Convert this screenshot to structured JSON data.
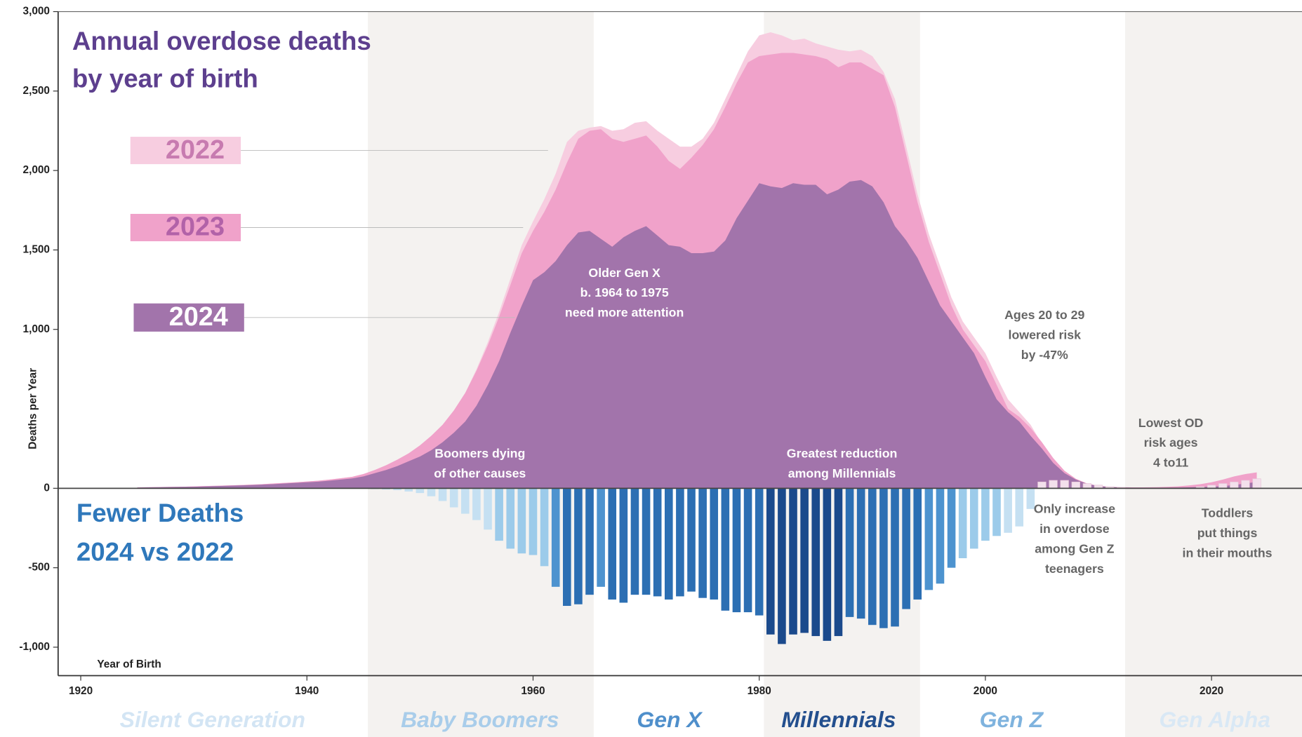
{
  "chart_data": {
    "type": "area",
    "title": [
      "Annual overdose deaths",
      "by year of birth"
    ],
    "bar_title": [
      "Fewer Deaths",
      "2024 vs 2022"
    ],
    "y_label": "Deaths per Year",
    "x_label": "Year of Birth",
    "xlim": [
      1918,
      2028
    ],
    "ylim": [
      -1200,
      3000
    ],
    "xticks": [
      1920,
      1940,
      1960,
      1980,
      2000,
      2020
    ],
    "yticks": [
      {
        "value": 3000,
        "label": "3,000"
      },
      {
        "value": 2500,
        "label": "2,500"
      },
      {
        "value": 2000,
        "label": "2,000"
      },
      {
        "value": 1500,
        "label": "1,500"
      },
      {
        "value": 1000,
        "label": "1,000"
      },
      0,
      -500,
      {
        "value": -1000,
        "label": "-1,000"
      }
    ],
    "x": [
      1925,
      1926,
      1927,
      1928,
      1929,
      1930,
      1931,
      1932,
      1933,
      1934,
      1935,
      1936,
      1937,
      1938,
      1939,
      1940,
      1941,
      1942,
      1943,
      1944,
      1945,
      1946,
      1947,
      1948,
      1949,
      1950,
      1951,
      1952,
      1953,
      1954,
      1955,
      1956,
      1957,
      1958,
      1959,
      1960,
      1961,
      1962,
      1963,
      1964,
      1965,
      1966,
      1967,
      1968,
      1969,
      1970,
      1971,
      1972,
      1973,
      1974,
      1975,
      1976,
      1977,
      1978,
      1979,
      1980,
      1981,
      1982,
      1983,
      1984,
      1985,
      1986,
      1987,
      1988,
      1989,
      1990,
      1991,
      1992,
      1993,
      1994,
      1995,
      1996,
      1997,
      1998,
      1999,
      2000,
      2001,
      2002,
      2003,
      2004,
      2005,
      2006,
      2007,
      2008,
      2009,
      2010,
      2011,
      2012,
      2013,
      2014,
      2015,
      2016,
      2017,
      2018,
      2019,
      2020,
      2021,
      2022,
      2023,
      2024
    ],
    "series": [
      {
        "name": "2022",
        "color": "#f7cde0",
        "label_color": "#c77bb0",
        "values": [
          6,
          7,
          8,
          9,
          10,
          12,
          14,
          16,
          18,
          20,
          23,
          26,
          30,
          34,
          38,
          43,
          48,
          55,
          63,
          72,
          90,
          115,
          145,
          180,
          220,
          270,
          330,
          400,
          490,
          600,
          750,
          920,
          1110,
          1320,
          1530,
          1680,
          1820,
          1980,
          2180,
          2250,
          2270,
          2280,
          2250,
          2260,
          2300,
          2310,
          2250,
          2200,
          2150,
          2150,
          2200,
          2300,
          2450,
          2600,
          2750,
          2850,
          2870,
          2850,
          2820,
          2830,
          2800,
          2780,
          2760,
          2750,
          2760,
          2720,
          2620,
          2450,
          2150,
          1850,
          1600,
          1400,
          1200,
          1050,
          950,
          850,
          700,
          560,
          480,
          400,
          280,
          170,
          90,
          40,
          15,
          6,
          3,
          2,
          2,
          2,
          3,
          4,
          6,
          9,
          14,
          20,
          28,
          40,
          50,
          55
        ]
      },
      {
        "name": "2023",
        "color": "#f0a2ca",
        "label_color": "#b262a8",
        "values": [
          6,
          7,
          8,
          9,
          10,
          12,
          14,
          16,
          18,
          20,
          23,
          26,
          30,
          34,
          38,
          43,
          48,
          55,
          63,
          72,
          90,
          115,
          145,
          180,
          220,
          270,
          330,
          400,
          490,
          600,
          740,
          900,
          1080,
          1280,
          1480,
          1620,
          1740,
          1880,
          2050,
          2200,
          2250,
          2260,
          2200,
          2180,
          2200,
          2220,
          2150,
          2060,
          2010,
          2080,
          2160,
          2260,
          2400,
          2550,
          2680,
          2720,
          2730,
          2740,
          2740,
          2730,
          2720,
          2700,
          2650,
          2680,
          2680,
          2640,
          2600,
          2400,
          2100,
          1800,
          1550,
          1350,
          1150,
          1000,
          900,
          800,
          650,
          500,
          450,
          380,
          290,
          190,
          110,
          60,
          30,
          16,
          10,
          7,
          6,
          6,
          7,
          9,
          12,
          18,
          26,
          38,
          55,
          75,
          90,
          100
        ]
      },
      {
        "name": "2024",
        "color": "#a274ab",
        "label_color": "#ffffff",
        "values": [
          5,
          6,
          7,
          8,
          9,
          10,
          12,
          14,
          16,
          18,
          20,
          23,
          26,
          30,
          34,
          38,
          42,
          48,
          55,
          62,
          75,
          95,
          115,
          140,
          170,
          200,
          240,
          290,
          350,
          420,
          520,
          650,
          800,
          980,
          1150,
          1310,
          1360,
          1430,
          1530,
          1610,
          1620,
          1570,
          1520,
          1580,
          1620,
          1650,
          1590,
          1530,
          1520,
          1480,
          1480,
          1490,
          1560,
          1700,
          1810,
          1920,
          1900,
          1890,
          1920,
          1910,
          1910,
          1850,
          1880,
          1930,
          1940,
          1900,
          1800,
          1650,
          1560,
          1450,
          1300,
          1150,
          1050,
          950,
          850,
          700,
          560,
          480,
          420,
          330,
          250,
          160,
          95,
          55,
          28,
          14,
          8,
          5,
          4,
          4,
          4,
          4,
          5,
          6,
          8,
          10,
          14,
          20,
          30,
          40
        ]
      }
    ],
    "bars": {
      "values": [
        0,
        0,
        0,
        0,
        0,
        0,
        0,
        0,
        0,
        0,
        0,
        0,
        0,
        0,
        0,
        0,
        0,
        0,
        0,
        0,
        0,
        -5,
        -8,
        -12,
        -20,
        -30,
        -50,
        -80,
        -120,
        -160,
        -200,
        -260,
        -330,
        -380,
        -410,
        -420,
        -490,
        -620,
        -740,
        -730,
        -670,
        -620,
        -700,
        -720,
        -670,
        -670,
        -680,
        -700,
        -680,
        -650,
        -690,
        -700,
        -770,
        -780,
        -780,
        -800,
        -920,
        -980,
        -920,
        -910,
        -930,
        -960,
        -930,
        -810,
        -820,
        -860,
        -880,
        -870,
        -760,
        -700,
        -640,
        -600,
        -500,
        -440,
        -380,
        -330,
        -300,
        -280,
        -240,
        -130,
        40,
        50,
        50,
        40,
        30,
        20,
        10,
        5,
        0,
        0,
        0,
        0,
        0,
        0,
        10,
        20,
        30,
        40,
        50,
        60
      ],
      "colors": [
        "#c5e0f2",
        "#c5e0f2",
        "#c5e0f2",
        "#c5e0f2",
        "#c5e0f2",
        "#c5e0f2",
        "#c5e0f2",
        "#c5e0f2",
        "#c5e0f2",
        "#c5e0f2",
        "#c5e0f2",
        "#c5e0f2",
        "#c5e0f2",
        "#c5e0f2",
        "#c5e0f2",
        "#c5e0f2",
        "#c5e0f2",
        "#c5e0f2",
        "#c5e0f2",
        "#c5e0f2",
        "#c5e0f2",
        "#c5e0f2",
        "#c5e0f2",
        "#c5e0f2",
        "#c5e0f2",
        "#c5e0f2",
        "#c5e0f2",
        "#c5e0f2",
        "#c5e0f2",
        "#c5e0f2",
        "#c5e0f2",
        "#c5e0f2",
        "#9ccbea",
        "#9ccbea",
        "#9ccbea",
        "#9ccbea",
        "#9ccbea",
        "#4d93cf",
        "#2c6fb3",
        "#2c6fb3",
        "#2c6fb3",
        "#4d93cf",
        "#2c6fb3",
        "#2c6fb3",
        "#2c6fb3",
        "#2c6fb3",
        "#2c6fb3",
        "#2c6fb3",
        "#2c6fb3",
        "#2c6fb3",
        "#2c6fb3",
        "#2c6fb3",
        "#2c6fb3",
        "#2c6fb3",
        "#2c6fb3",
        "#2c6fb3",
        "#1b4a8c",
        "#1b4a8c",
        "#1b4a8c",
        "#1b4a8c",
        "#1b4a8c",
        "#1b4a8c",
        "#1b4a8c",
        "#2c6fb3",
        "#2c6fb3",
        "#2c6fb3",
        "#2c6fb3",
        "#2c6fb3",
        "#2c6fb3",
        "#2c6fb3",
        "#4d93cf",
        "#4d93cf",
        "#4d93cf",
        "#9ccbea",
        "#9ccbea",
        "#9ccbea",
        "#9ccbea",
        "#c5e0f2",
        "#c5e0f2",
        "#c5e0f2",
        "#f3e0ec",
        "#f3e0ec",
        "#f3e0ec",
        "#f3e0ec",
        "#f3e0ec",
        "#f3e0ec",
        "#f3e0ec",
        "#f3e0ec",
        "#c5e0f2",
        "#c5e0f2",
        "#c5e0f2",
        "#c5e0f2",
        "#c5e0f2",
        "#c5e0f2",
        "#f3e0ec",
        "#f3e0ec",
        "#f3e0ec",
        "#f3e0ec",
        "#f3e0ec",
        "#f3e0ec"
      ]
    },
    "annotations": [
      [
        "Older Gen X",
        "b. 1964 to 1975",
        "need more attention"
      ],
      [
        "Boomers dying",
        "of other causes"
      ],
      [
        "Greatest reduction",
        "among Millennials"
      ],
      [
        "Ages 20 to 29",
        "lowered risk",
        "by -47%"
      ],
      [
        "Lowest OD",
        "risk ages",
        "4 to11"
      ],
      [
        "Only increase",
        "in overdose",
        "among Gen Z",
        "teenagers"
      ],
      [
        "Toddlers",
        "put things",
        "in their mouths"
      ]
    ],
    "generations": [
      "Silent Generation",
      "Baby Boomers",
      "Gen X",
      "Millennials",
      "Gen Z",
      "Gen Alpha"
    ]
  }
}
